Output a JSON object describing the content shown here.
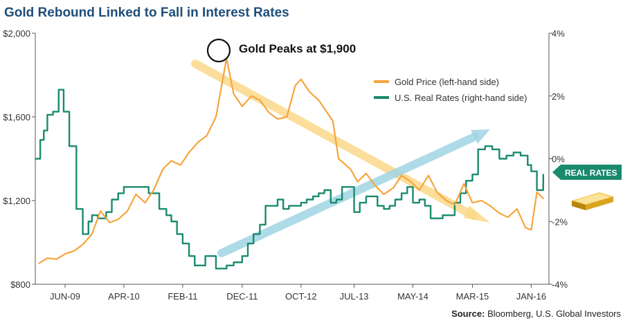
{
  "chart_data": {
    "type": "line",
    "title": "Gold Rebound Linked to Fall in Interest Rates",
    "annotation": "Gold Peaks at $1,900",
    "badge": "REAL RATES",
    "source_bold": "Source:",
    "source_rest": " Bloomberg, U.S. Global Investors",
    "left_axis": {
      "ticks": [
        800,
        1200,
        1600,
        2000
      ],
      "labels": [
        "$800",
        "$1,200",
        "$1,600",
        "$2,000"
      ],
      "ylim": [
        800,
        2000
      ]
    },
    "right_axis": {
      "ticks": [
        -4,
        -2,
        0,
        2,
        4
      ],
      "labels": [
        "-4%",
        "-2%",
        "0%",
        "2%",
        "4%"
      ],
      "ylim": [
        -4,
        4
      ]
    },
    "x_labels": [
      "JUN-09",
      "APR-10",
      "FEB-11",
      "DEC-11",
      "OCT-12",
      "JUL-13",
      "MAY-14",
      "MAR-15",
      "JAN-16"
    ],
    "x_label_pos": [
      2009.42,
      2010.25,
      2011.08,
      2011.92,
      2012.75,
      2013.5,
      2014.33,
      2015.17,
      2016.0
    ],
    "xlim": [
      2009.0,
      2016.25
    ],
    "legend": [
      "Gold Price (left-hand side)",
      "U.S. Real Rates (right-hand side)"
    ],
    "series": [
      {
        "name": "Gold Price (left-hand side)",
        "axis": "left",
        "color": "#f7a43c",
        "x": [
          2009.05,
          2009.17,
          2009.3,
          2009.42,
          2009.55,
          2009.67,
          2009.8,
          2009.92,
          2010.05,
          2010.17,
          2010.3,
          2010.42,
          2010.55,
          2010.67,
          2010.8,
          2010.92,
          2011.05,
          2011.17,
          2011.3,
          2011.42,
          2011.55,
          2011.63,
          2011.7,
          2011.8,
          2011.92,
          2012.05,
          2012.17,
          2012.3,
          2012.42,
          2012.55,
          2012.67,
          2012.75,
          2012.87,
          2013.0,
          2013.1,
          2013.2,
          2013.28,
          2013.35,
          2013.45,
          2013.55,
          2013.67,
          2013.8,
          2013.92,
          2014.05,
          2014.17,
          2014.3,
          2014.42,
          2014.55,
          2014.67,
          2014.8,
          2014.92,
          2015.05,
          2015.17,
          2015.3,
          2015.42,
          2015.55,
          2015.67,
          2015.8,
          2015.92,
          2016.0,
          2016.08,
          2016.17
        ],
        "values": [
          900,
          925,
          920,
          945,
          960,
          990,
          1040,
          1150,
          1095,
          1110,
          1150,
          1230,
          1190,
          1250,
          1350,
          1390,
          1370,
          1430,
          1480,
          1510,
          1600,
          1750,
          1880,
          1710,
          1650,
          1700,
          1680,
          1620,
          1590,
          1600,
          1750,
          1780,
          1720,
          1680,
          1630,
          1580,
          1400,
          1380,
          1350,
          1290,
          1330,
          1270,
          1230,
          1260,
          1320,
          1290,
          1250,
          1320,
          1240,
          1200,
          1180,
          1280,
          1190,
          1200,
          1175,
          1140,
          1120,
          1160,
          1070,
          1060,
          1240,
          1210
        ]
      },
      {
        "name": "U.S. Real Rates (right-hand side)",
        "axis": "right",
        "color": "#1a8a6e",
        "x": [
          2009.0,
          2009.07,
          2009.12,
          2009.17,
          2009.25,
          2009.33,
          2009.4,
          2009.48,
          2009.58,
          2009.67,
          2009.75,
          2009.8,
          2009.88,
          2010.0,
          2010.08,
          2010.17,
          2010.25,
          2010.35,
          2010.5,
          2010.6,
          2010.75,
          2010.85,
          2010.92,
          2011.0,
          2011.08,
          2011.17,
          2011.25,
          2011.4,
          2011.55,
          2011.7,
          2011.8,
          2011.92,
          2012.0,
          2012.08,
          2012.17,
          2012.25,
          2012.33,
          2012.42,
          2012.5,
          2012.58,
          2012.67,
          2012.75,
          2012.83,
          2012.92,
          2013.0,
          2013.08,
          2013.17,
          2013.25,
          2013.33,
          2013.42,
          2013.5,
          2013.58,
          2013.67,
          2013.75,
          2013.83,
          2013.92,
          2014.0,
          2014.08,
          2014.17,
          2014.25,
          2014.33,
          2014.42,
          2014.5,
          2014.58,
          2014.67,
          2014.75,
          2014.83,
          2014.92,
          2015.0,
          2015.08,
          2015.17,
          2015.25,
          2015.35,
          2015.45,
          2015.55,
          2015.65,
          2015.75,
          2015.85,
          2015.95,
          2016.0,
          2016.08,
          2016.17
        ],
        "values": [
          0.0,
          0.6,
          0.9,
          1.4,
          1.5,
          2.2,
          1.5,
          0.4,
          -1.6,
          -2.4,
          -2.0,
          -1.8,
          -1.9,
          -1.7,
          -1.3,
          -1.1,
          -0.9,
          -0.9,
          -0.9,
          -1.1,
          -1.6,
          -1.8,
          -2.0,
          -2.4,
          -2.7,
          -3.1,
          -3.4,
          -3.1,
          -3.5,
          -3.4,
          -3.3,
          -3.1,
          -2.7,
          -2.4,
          -2.1,
          -1.5,
          -1.5,
          -1.3,
          -1.6,
          -1.5,
          -1.5,
          -1.4,
          -1.3,
          -1.2,
          -1.1,
          -1.0,
          -1.4,
          -1.3,
          -0.9,
          -0.9,
          -1.7,
          -1.4,
          -1.2,
          -1.2,
          -1.5,
          -1.6,
          -1.5,
          -1.3,
          -1.1,
          -0.9,
          -1.4,
          -1.3,
          -1.5,
          -1.9,
          -1.9,
          -1.8,
          -1.8,
          -1.4,
          -1.1,
          -0.7,
          -0.5,
          0.3,
          0.4,
          0.3,
          0.0,
          0.1,
          0.2,
          0.1,
          -0.2,
          -0.4,
          -1.0,
          -0.5
        ]
      }
    ],
    "grid": false,
    "legend_position": "upper-right inside plot"
  }
}
